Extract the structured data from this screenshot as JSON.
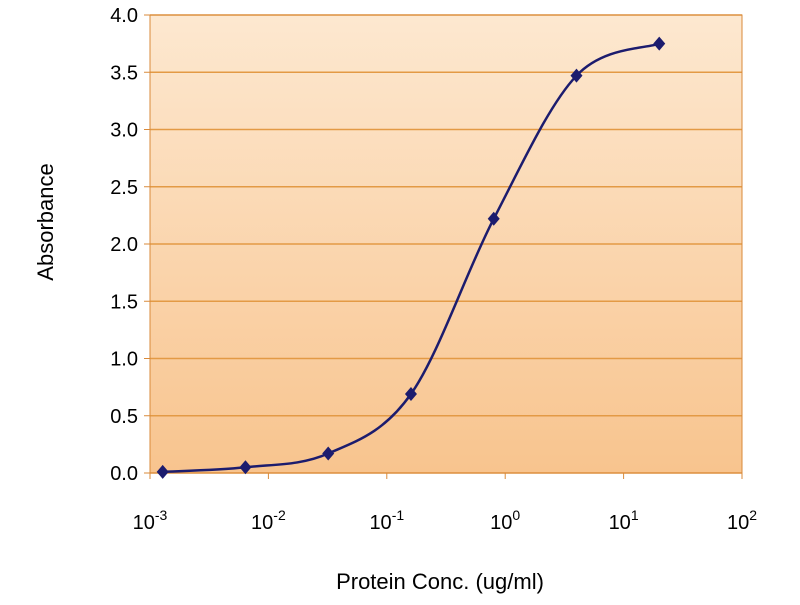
{
  "chart_data": {
    "type": "line",
    "title": "",
    "xlabel": "Protein Conc. (ug/ml)",
    "ylabel": "Absorbance",
    "x_scale": "log",
    "xlim": [
      0.001,
      100
    ],
    "ylim": [
      0,
      4.0
    ],
    "x_ticks": [
      {
        "base": "10",
        "exp": "-3",
        "value": 0.001
      },
      {
        "base": "10",
        "exp": "-2",
        "value": 0.01
      },
      {
        "base": "10",
        "exp": "-1",
        "value": 0.1
      },
      {
        "base": "10",
        "exp": "0",
        "value": 1
      },
      {
        "base": "10",
        "exp": "1",
        "value": 10
      },
      {
        "base": "10",
        "exp": "2",
        "value": 100
      }
    ],
    "y_ticks": [
      "0.0",
      "0.5",
      "1.0",
      "1.5",
      "2.0",
      "2.5",
      "3.0",
      "3.5",
      "4.0"
    ],
    "grid": "horizontal",
    "legend": "none",
    "series": [
      {
        "name": "Absorbance",
        "color": "#1c1c6e",
        "marker": "diamond",
        "smooth": true,
        "x": [
          0.00128,
          0.0064,
          0.032,
          0.16,
          0.8,
          4,
          20
        ],
        "y": [
          0.01,
          0.05,
          0.17,
          0.69,
          2.22,
          3.47,
          3.75
        ]
      }
    ],
    "colors": {
      "plot_bg_top": "#fde8d0",
      "plot_bg_bottom": "#f8c48e",
      "grid": "#e39a45",
      "frame": "#d98a3a"
    }
  }
}
